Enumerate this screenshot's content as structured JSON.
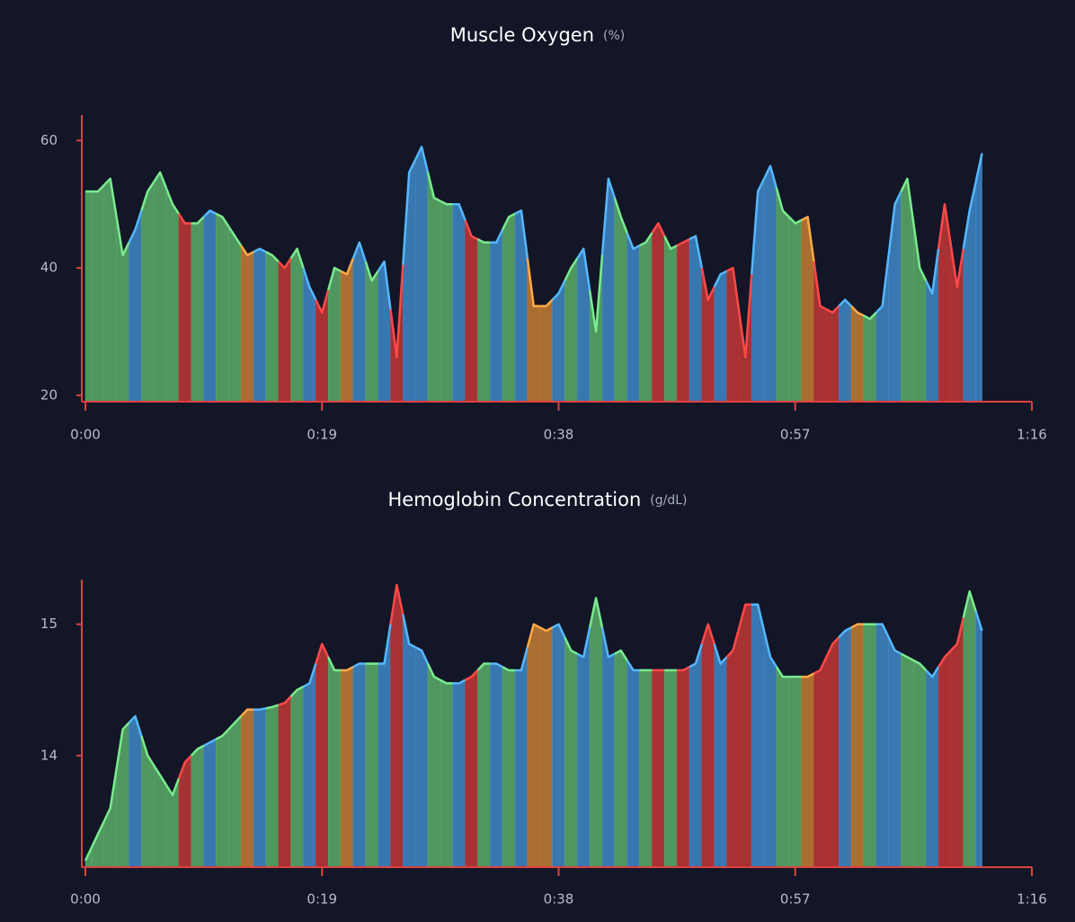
{
  "chart_data": [
    {
      "type": "area",
      "title": "Muscle Oxygen",
      "subtitle": "(%)",
      "x": [
        0,
        1,
        2,
        3,
        4,
        5,
        6,
        7,
        8,
        9,
        10,
        11,
        12,
        13,
        14,
        15,
        16,
        17,
        18,
        19,
        20,
        21,
        22,
        23,
        24,
        25,
        26,
        27,
        28,
        29,
        30,
        31,
        32,
        33,
        34,
        35,
        36,
        37,
        38,
        39,
        40,
        41,
        42,
        43,
        44,
        45,
        46,
        47,
        48,
        49,
        50,
        51,
        52,
        53,
        54,
        55,
        56,
        57,
        58,
        59,
        60,
        61,
        62,
        63,
        64,
        65,
        66,
        67,
        68,
        69,
        70,
        71,
        72
      ],
      "values": [
        52,
        52,
        54,
        42,
        46,
        52,
        55,
        50,
        47,
        47,
        49,
        48,
        45,
        42,
        43,
        42,
        40,
        43,
        37,
        33,
        40,
        39,
        44,
        38,
        41,
        26,
        55,
        59,
        51,
        50,
        50,
        45,
        44,
        44,
        48,
        49,
        34,
        34,
        36,
        40,
        43,
        30,
        54,
        48,
        43,
        44,
        47,
        43,
        44,
        45,
        35,
        39,
        40,
        26,
        52,
        56,
        49,
        47,
        48,
        34,
        33,
        35,
        33,
        32,
        34,
        50,
        54,
        40,
        36,
        50,
        37,
        49,
        58
      ],
      "colors": [
        "#5aae6a",
        "#5aae6a",
        "#5aae6a",
        "#5aae6a",
        "#3f88c8",
        "#5aae6a",
        "#5aae6a",
        "#5aae6a",
        "#c23636",
        "#5aae6a",
        "#3f88c8",
        "#5aae6a",
        "#5aae6a",
        "#c67e34",
        "#3f88c8",
        "#5aae6a",
        "#c23636",
        "#5aae6a",
        "#3f88c8",
        "#c23636",
        "#5aae6a",
        "#c67e34",
        "#3f88c8",
        "#5aae6a",
        "#3f88c8",
        "#c23636",
        "#3f88c8",
        "#3f88c8",
        "#5aae6a",
        "#5aae6a",
        "#3f88c8",
        "#c23636",
        "#5aae6a",
        "#3f88c8",
        "#5aae6a",
        "#3f88c8",
        "#c67e34",
        "#c67e34",
        "#3f88c8",
        "#5aae6a",
        "#3f88c8",
        "#5aae6a",
        "#3f88c8",
        "#5aae6a",
        "#3f88c8",
        "#5aae6a",
        "#c23636",
        "#5aae6a",
        "#c23636",
        "#3f88c8",
        "#c23636",
        "#3f88c8",
        "#c23636",
        "#c23636",
        "#3f88c8",
        "#3f88c8",
        "#5aae6a",
        "#5aae6a",
        "#c67e34",
        "#c23636",
        "#c23636",
        "#3f88c8",
        "#c67e34",
        "#5aae6a",
        "#3f88c8",
        "#3f88c8",
        "#5aae6a",
        "#5aae6a",
        "#3f88c8",
        "#c23636",
        "#c23636",
        "#3f88c8",
        "#3f88c8"
      ],
      "xlim": [
        0,
        76
      ],
      "xticks": [
        {
          "value": 0,
          "label": "0:00"
        },
        {
          "value": 19,
          "label": "0:19"
        },
        {
          "value": 38,
          "label": "0:38"
        },
        {
          "value": 57,
          "label": "0:57"
        },
        {
          "value": 76,
          "label": "1:16"
        }
      ],
      "ylim": [
        19,
        64
      ],
      "yticks": [
        20,
        40,
        60
      ],
      "axis_color": "#e0403f"
    },
    {
      "type": "area",
      "title": "Hemoglobin Concentration",
      "subtitle": "(g/dL)",
      "x": [
        0,
        1,
        2,
        3,
        4,
        5,
        6,
        7,
        8,
        9,
        10,
        11,
        12,
        13,
        14,
        15,
        16,
        17,
        18,
        19,
        20,
        21,
        22,
        23,
        24,
        25,
        26,
        27,
        28,
        29,
        30,
        31,
        32,
        33,
        34,
        35,
        36,
        37,
        38,
        39,
        40,
        41,
        42,
        43,
        44,
        45,
        46,
        47,
        48,
        49,
        50,
        51,
        52,
        53,
        54,
        55,
        56,
        57,
        58,
        59,
        60,
        61,
        62,
        63,
        64,
        65,
        66,
        67,
        68,
        69,
        70,
        71,
        72
      ],
      "values": [
        13.2,
        13.4,
        13.6,
        14.2,
        14.3,
        14.0,
        13.85,
        13.7,
        13.95,
        14.05,
        14.1,
        14.15,
        14.25,
        14.35,
        14.35,
        14.37,
        14.4,
        14.5,
        14.55,
        14.85,
        14.65,
        14.65,
        14.7,
        14.7,
        14.7,
        15.3,
        14.85,
        14.8,
        14.6,
        14.55,
        14.55,
        14.6,
        14.7,
        14.7,
        14.65,
        14.65,
        15.0,
        14.95,
        15.0,
        14.8,
        14.75,
        15.2,
        14.75,
        14.8,
        14.65,
        14.65,
        14.65,
        14.65,
        14.65,
        14.7,
        15.0,
        14.7,
        14.8,
        15.15,
        15.15,
        14.75,
        14.6,
        14.6,
        14.6,
        14.65,
        14.85,
        14.95,
        15.0,
        15.0,
        15.0,
        14.8,
        14.75,
        14.7,
        14.6,
        14.75,
        14.85,
        15.25,
        14.95
      ],
      "colors": [
        "#5aae6a",
        "#5aae6a",
        "#5aae6a",
        "#5aae6a",
        "#3f88c8",
        "#5aae6a",
        "#5aae6a",
        "#5aae6a",
        "#c23636",
        "#5aae6a",
        "#3f88c8",
        "#5aae6a",
        "#5aae6a",
        "#c67e34",
        "#3f88c8",
        "#5aae6a",
        "#c23636",
        "#5aae6a",
        "#3f88c8",
        "#c23636",
        "#5aae6a",
        "#c67e34",
        "#3f88c8",
        "#5aae6a",
        "#3f88c8",
        "#c23636",
        "#3f88c8",
        "#3f88c8",
        "#5aae6a",
        "#5aae6a",
        "#3f88c8",
        "#c23636",
        "#5aae6a",
        "#3f88c8",
        "#5aae6a",
        "#3f88c8",
        "#c67e34",
        "#c67e34",
        "#3f88c8",
        "#5aae6a",
        "#3f88c8",
        "#5aae6a",
        "#3f88c8",
        "#5aae6a",
        "#3f88c8",
        "#5aae6a",
        "#c23636",
        "#5aae6a",
        "#c23636",
        "#3f88c8",
        "#c23636",
        "#3f88c8",
        "#c23636",
        "#c23636",
        "#3f88c8",
        "#3f88c8",
        "#5aae6a",
        "#5aae6a",
        "#c67e34",
        "#c23636",
        "#c23636",
        "#3f88c8",
        "#c67e34",
        "#5aae6a",
        "#3f88c8",
        "#3f88c8",
        "#5aae6a",
        "#5aae6a",
        "#3f88c8",
        "#c23636",
        "#c23636",
        "#5aae6a",
        "#3f88c8"
      ],
      "xlim": [
        0,
        76
      ],
      "xticks": [
        {
          "value": 0,
          "label": "0:00"
        },
        {
          "value": 19,
          "label": "0:19"
        },
        {
          "value": 38,
          "label": "0:38"
        },
        {
          "value": 57,
          "label": "0:57"
        },
        {
          "value": 76,
          "label": "1:16"
        }
      ],
      "ylim": [
        13.15,
        15.34
      ],
      "yticks": [
        14,
        15
      ],
      "axis_color": "#e0403f"
    }
  ]
}
